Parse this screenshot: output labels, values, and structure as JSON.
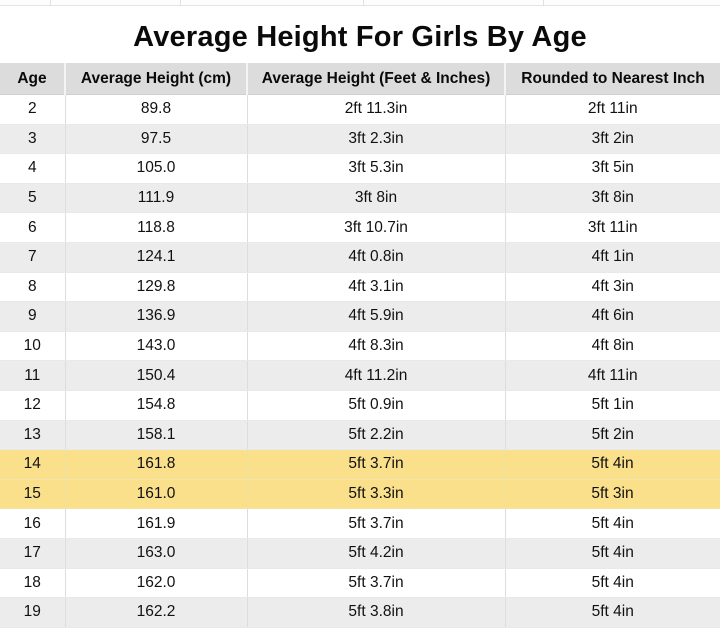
{
  "title": "Average Height For Girls By Age",
  "table": {
    "columns": [
      "Age",
      "Average Height (cm)",
      "Average Height (Feet & Inches)",
      "Rounded to Nearest Inch"
    ],
    "rows": [
      {
        "age": "2",
        "cm": "89.8",
        "ftin": "2ft 11.3in",
        "rounded": "2ft 11in",
        "highlight": false
      },
      {
        "age": "3",
        "cm": "97.5",
        "ftin": "3ft 2.3in",
        "rounded": "3ft 2in",
        "highlight": false
      },
      {
        "age": "4",
        "cm": "105.0",
        "ftin": "3ft 5.3in",
        "rounded": "3ft 5in",
        "highlight": false
      },
      {
        "age": "5",
        "cm": "111.9",
        "ftin": "3ft 8in",
        "rounded": "3ft 8in",
        "highlight": false
      },
      {
        "age": "6",
        "cm": "118.8",
        "ftin": "3ft 10.7in",
        "rounded": "3ft 11in",
        "highlight": false
      },
      {
        "age": "7",
        "cm": "124.1",
        "ftin": "4ft 0.8in",
        "rounded": "4ft 1in",
        "highlight": false
      },
      {
        "age": "8",
        "cm": "129.8",
        "ftin": "4ft 3.1in",
        "rounded": "4ft 3in",
        "highlight": false
      },
      {
        "age": "9",
        "cm": "136.9",
        "ftin": "4ft 5.9in",
        "rounded": "4ft 6in",
        "highlight": false
      },
      {
        "age": "10",
        "cm": "143.0",
        "ftin": "4ft 8.3in",
        "rounded": "4ft 8in",
        "highlight": false
      },
      {
        "age": "11",
        "cm": "150.4",
        "ftin": "4ft 11.2in",
        "rounded": "4ft 11in",
        "highlight": false
      },
      {
        "age": "12",
        "cm": "154.8",
        "ftin": "5ft 0.9in",
        "rounded": "5ft 1in",
        "highlight": false
      },
      {
        "age": "13",
        "cm": "158.1",
        "ftin": "5ft 2.2in",
        "rounded": "5ft 2in",
        "highlight": false
      },
      {
        "age": "14",
        "cm": "161.8",
        "ftin": "5ft 3.7in",
        "rounded": "5ft 4in",
        "highlight": true
      },
      {
        "age": "15",
        "cm": "161.0",
        "ftin": "5ft 3.3in",
        "rounded": "5ft 3in",
        "highlight": true
      },
      {
        "age": "16",
        "cm": "161.9",
        "ftin": "5ft 3.7in",
        "rounded": "5ft 4in",
        "highlight": false
      },
      {
        "age": "17",
        "cm": "163.0",
        "ftin": "5ft 4.2in",
        "rounded": "5ft 4in",
        "highlight": false
      },
      {
        "age": "18",
        "cm": "162.0",
        "ftin": "5ft 3.7in",
        "rounded": "5ft 4in",
        "highlight": false
      },
      {
        "age": "19",
        "cm": "162.2",
        "ftin": "5ft 3.8in",
        "rounded": "5ft 4in",
        "highlight": false
      }
    ]
  },
  "colors": {
    "header_bg": "#dcdcdc",
    "row_bg": "#ffffff",
    "row_alt_bg": "#ececec",
    "highlight_bg": "#fbe08c",
    "grid_line": "#dddddd",
    "text": "#111111"
  },
  "chart_data": {
    "type": "table",
    "title": "Average Height For Girls By Age",
    "columns": [
      "Age",
      "Average Height (cm)",
      "Average Height (Feet & Inches)",
      "Rounded to Nearest Inch"
    ],
    "rows": [
      [
        2,
        89.8,
        "2ft 11.3in",
        "2ft 11in"
      ],
      [
        3,
        97.5,
        "3ft 2.3in",
        "3ft 2in"
      ],
      [
        4,
        105.0,
        "3ft 5.3in",
        "3ft 5in"
      ],
      [
        5,
        111.9,
        "3ft 8in",
        "3ft 8in"
      ],
      [
        6,
        118.8,
        "3ft 10.7in",
        "3ft 11in"
      ],
      [
        7,
        124.1,
        "4ft 0.8in",
        "4ft 1in"
      ],
      [
        8,
        129.8,
        "4ft 3.1in",
        "4ft 3in"
      ],
      [
        9,
        136.9,
        "4ft 5.9in",
        "4ft 6in"
      ],
      [
        10,
        143.0,
        "4ft 8.3in",
        "4ft 8in"
      ],
      [
        11,
        150.4,
        "4ft 11.2in",
        "4ft 11in"
      ],
      [
        12,
        154.8,
        "5ft 0.9in",
        "5ft 1in"
      ],
      [
        13,
        158.1,
        "5ft 2.2in",
        "5ft 2in"
      ],
      [
        14,
        161.8,
        "5ft 3.7in",
        "5ft 4in"
      ],
      [
        15,
        161.0,
        "5ft 3.3in",
        "5ft 3in"
      ],
      [
        16,
        161.9,
        "5ft 3.7in",
        "5ft 4in"
      ],
      [
        17,
        163.0,
        "5ft 4.2in",
        "5ft 4in"
      ],
      [
        18,
        162.0,
        "5ft 3.7in",
        "5ft 4in"
      ],
      [
        19,
        162.2,
        "5ft 3.8in",
        "5ft 4in"
      ]
    ],
    "highlighted_ages": [
      14,
      15
    ],
    "layout_hints": {
      "row_striping": "even ages white, odd ages light gray",
      "highlight_color": "#fbe08c"
    }
  }
}
